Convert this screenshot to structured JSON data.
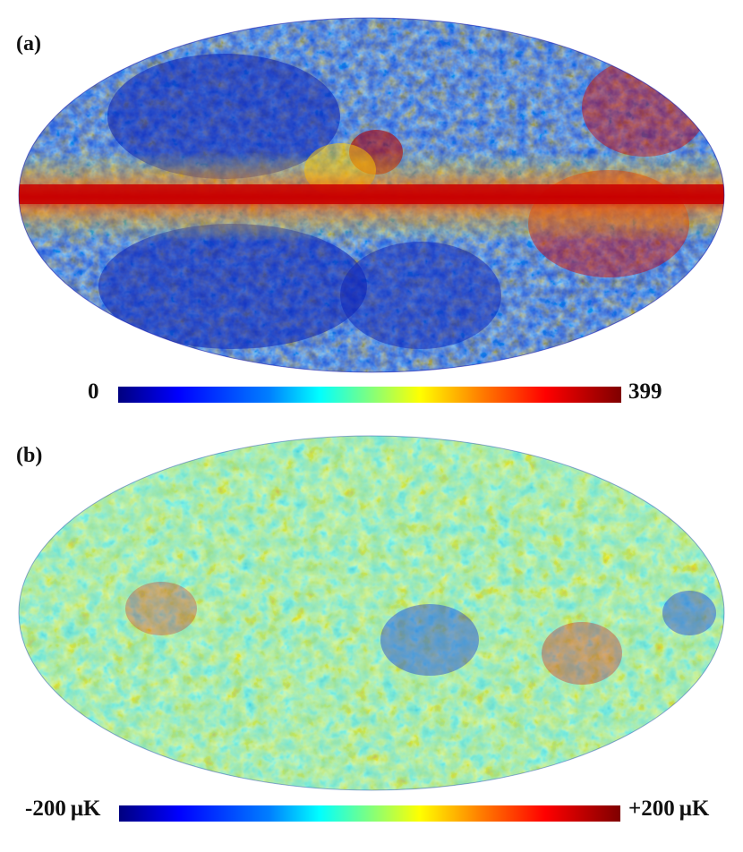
{
  "figure": {
    "panels": [
      {
        "label": "(a)",
        "description_type": "all-sky-mollweide-map",
        "colorbar": {
          "min_label": "0",
          "max_label": "399"
        },
        "colormap": "jet",
        "features": "bright galactic plane band with red emission, blue high-latitude regions"
      },
      {
        "label": "(b)",
        "description_type": "all-sky-mollweide-map",
        "colorbar": {
          "min_label": "-200 μK",
          "max_label": "+200 μK"
        },
        "colormap": "jet",
        "features": "cleaned CMB temperature anisotropy, mottled cyan/yellow with red and blue spots"
      }
    ]
  },
  "colors": {
    "jet_stops": [
      "#00007f",
      "#0000ff",
      "#007fff",
      "#00ffff",
      "#7fff7f",
      "#ffff00",
      "#ff7f00",
      "#ff0000",
      "#7f0000"
    ]
  }
}
